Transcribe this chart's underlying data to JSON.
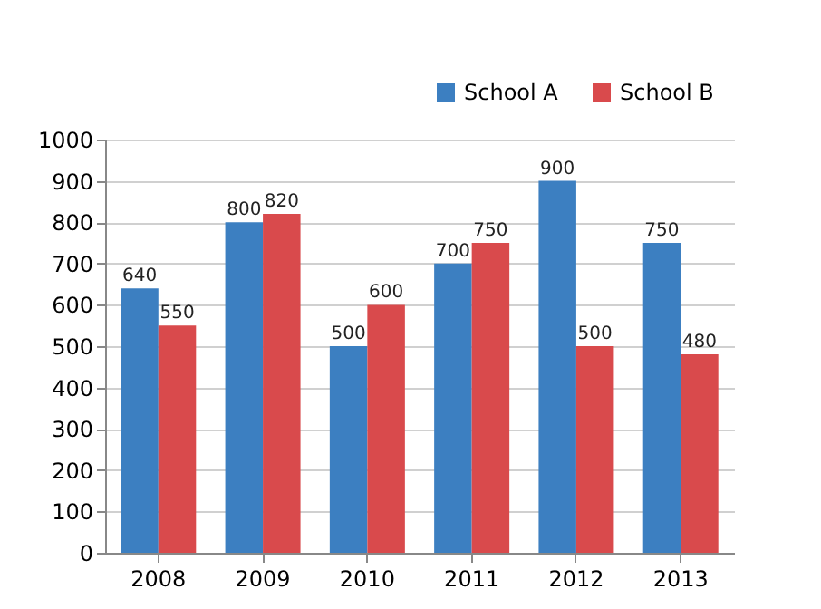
{
  "chart_data": {
    "type": "bar",
    "categories": [
      "2008",
      "2009",
      "2010",
      "2011",
      "2012",
      "2013"
    ],
    "series": [
      {
        "name": "School A",
        "color": "#3c7fc1",
        "values": [
          640,
          800,
          500,
          700,
          900,
          750
        ]
      },
      {
        "name": "School B",
        "color": "#d94a4c",
        "values": [
          550,
          820,
          600,
          750,
          500,
          480
        ]
      }
    ],
    "ylim": [
      0,
      1000
    ],
    "yticks": [
      0,
      100,
      200,
      300,
      400,
      500,
      600,
      700,
      800,
      900,
      1000
    ],
    "grid": "y",
    "legend": "top right",
    "data_labels": true
  }
}
